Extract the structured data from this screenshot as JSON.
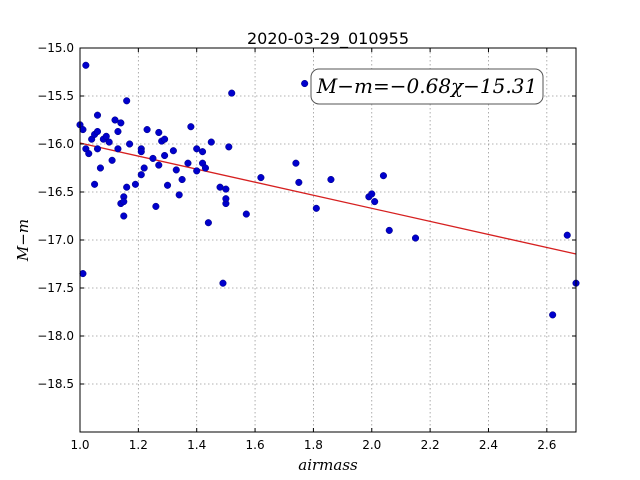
{
  "chart_data": {
    "type": "scatter",
    "title": "2020-03-29_010955",
    "xlabel": "airmass",
    "ylabel": "M−m",
    "xlim": [
      1.0,
      2.7
    ],
    "ylim": [
      -19.0,
      -15.0
    ],
    "y_inverted": true,
    "grid": true,
    "x_ticks": [
      "1.0",
      "1.2",
      "1.4",
      "1.6",
      "1.8",
      "2.0",
      "2.2",
      "2.4",
      "2.6"
    ],
    "y_ticks": [
      "−15.0",
      "−15.5",
      "−16.0",
      "−16.5",
      "−17.0",
      "−17.5",
      "−18.0",
      "−18.5"
    ],
    "annotation": "M−m=−0.68χ−15.31",
    "fit": {
      "slope": -0.68,
      "intercept": -15.31,
      "color": "#d62020"
    },
    "point_color": "#0000cc",
    "points": [
      [
        1.0,
        -15.8
      ],
      [
        1.01,
        -15.85
      ],
      [
        1.01,
        -17.35
      ],
      [
        1.02,
        -15.18
      ],
      [
        1.02,
        -16.05
      ],
      [
        1.03,
        -16.1
      ],
      [
        1.04,
        -15.95
      ],
      [
        1.05,
        -16.42
      ],
      [
        1.05,
        -15.9
      ],
      [
        1.06,
        -15.7
      ],
      [
        1.06,
        -15.87
      ],
      [
        1.06,
        -16.05
      ],
      [
        1.07,
        -16.25
      ],
      [
        1.08,
        -15.95
      ],
      [
        1.09,
        -15.92
      ],
      [
        1.1,
        -15.98
      ],
      [
        1.11,
        -16.17
      ],
      [
        1.12,
        -15.75
      ],
      [
        1.13,
        -15.87
      ],
      [
        1.13,
        -16.05
      ],
      [
        1.14,
        -16.62
      ],
      [
        1.14,
        -15.78
      ],
      [
        1.15,
        -16.75
      ],
      [
        1.15,
        -16.55
      ],
      [
        1.15,
        -16.6
      ],
      [
        1.16,
        -16.45
      ],
      [
        1.16,
        -15.55
      ],
      [
        1.17,
        -16.0
      ],
      [
        1.19,
        -16.42
      ],
      [
        1.21,
        -16.32
      ],
      [
        1.21,
        -16.05
      ],
      [
        1.21,
        -16.08
      ],
      [
        1.22,
        -16.25
      ],
      [
        1.23,
        -15.85
      ],
      [
        1.25,
        -16.15
      ],
      [
        1.26,
        -16.65
      ],
      [
        1.27,
        -15.88
      ],
      [
        1.27,
        -16.22
      ],
      [
        1.28,
        -15.97
      ],
      [
        1.29,
        -16.12
      ],
      [
        1.29,
        -15.95
      ],
      [
        1.3,
        -16.43
      ],
      [
        1.32,
        -16.07
      ],
      [
        1.33,
        -16.27
      ],
      [
        1.34,
        -16.53
      ],
      [
        1.35,
        -16.37
      ],
      [
        1.37,
        -16.2
      ],
      [
        1.38,
        -15.82
      ],
      [
        1.4,
        -16.05
      ],
      [
        1.4,
        -16.28
      ],
      [
        1.42,
        -16.08
      ],
      [
        1.42,
        -16.2
      ],
      [
        1.43,
        -16.25
      ],
      [
        1.44,
        -16.82
      ],
      [
        1.45,
        -15.98
      ],
      [
        1.48,
        -16.45
      ],
      [
        1.49,
        -17.45
      ],
      [
        1.5,
        -16.47
      ],
      [
        1.5,
        -16.62
      ],
      [
        1.5,
        -16.57
      ],
      [
        1.51,
        -16.03
      ],
      [
        1.52,
        -15.47
      ],
      [
        1.57,
        -16.73
      ],
      [
        1.62,
        -16.35
      ],
      [
        1.74,
        -16.2
      ],
      [
        1.75,
        -16.4
      ],
      [
        1.77,
        -15.37
      ],
      [
        1.81,
        -16.67
      ],
      [
        1.86,
        -16.37
      ],
      [
        1.99,
        -16.55
      ],
      [
        2.0,
        -16.52
      ],
      [
        2.01,
        -16.6
      ],
      [
        2.04,
        -16.33
      ],
      [
        2.06,
        -16.9
      ],
      [
        2.15,
        -16.98
      ],
      [
        2.62,
        -17.78
      ],
      [
        2.67,
        -16.95
      ],
      [
        2.7,
        -17.45
      ]
    ]
  }
}
